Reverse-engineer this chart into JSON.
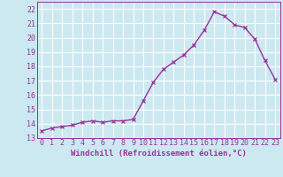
{
  "x": [
    0,
    1,
    2,
    3,
    4,
    5,
    6,
    7,
    8,
    9,
    10,
    11,
    12,
    13,
    14,
    15,
    16,
    17,
    18,
    19,
    20,
    21,
    22,
    23
  ],
  "y": [
    13.5,
    13.7,
    13.8,
    13.9,
    14.1,
    14.2,
    14.1,
    14.2,
    14.2,
    14.3,
    15.6,
    16.9,
    17.8,
    18.3,
    18.8,
    19.5,
    20.5,
    21.8,
    21.5,
    20.9,
    20.7,
    19.9,
    18.4,
    17.1
  ],
  "line_color": "#993399",
  "marker": "x",
  "bg_color": "#cce8f0",
  "grid_color": "#ffffff",
  "xlabel": "Windchill (Refroidissement éolien,°C)",
  "ylim": [
    13,
    22.5
  ],
  "xlim": [
    -0.5,
    23.5
  ],
  "yticks": [
    13,
    14,
    15,
    16,
    17,
    18,
    19,
    20,
    21,
    22
  ],
  "xticks": [
    0,
    1,
    2,
    3,
    4,
    5,
    6,
    7,
    8,
    9,
    10,
    11,
    12,
    13,
    14,
    15,
    16,
    17,
    18,
    19,
    20,
    21,
    22,
    23
  ],
  "xlabel_fontsize": 6.5,
  "tick_fontsize": 6.0,
  "line_width": 1.0,
  "marker_size": 2.5
}
